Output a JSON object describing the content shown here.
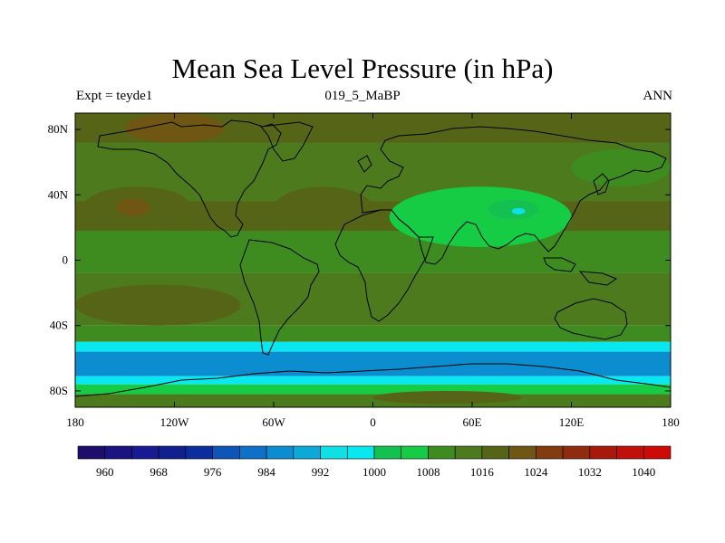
{
  "title": "Mean Sea Level Pressure (in hPa)",
  "left_label": "Expt = teyde1",
  "center_label": "019_5_MaBP",
  "right_label": "ANN",
  "chart_data": {
    "type": "heatmap",
    "title": "Mean Sea Level Pressure (in hPa)",
    "projection": "cylindrical equidistant",
    "xlim": [
      -180,
      180
    ],
    "ylim": [
      -90,
      90
    ],
    "x_ticks": [
      {
        "value": -180,
        "label": "180"
      },
      {
        "value": -120,
        "label": "120W"
      },
      {
        "value": -60,
        "label": "60W"
      },
      {
        "value": 0,
        "label": "0"
      },
      {
        "value": 60,
        "label": "60E"
      },
      {
        "value": 120,
        "label": "120E"
      },
      {
        "value": 180,
        "label": "180"
      }
    ],
    "y_ticks": [
      {
        "value": 80,
        "label": "80N"
      },
      {
        "value": 40,
        "label": "40N"
      },
      {
        "value": 0,
        "label": "0"
      },
      {
        "value": -40,
        "label": "40S"
      },
      {
        "value": -80,
        "label": "80S"
      }
    ],
    "colorbar": {
      "levels": [
        960,
        964,
        968,
        972,
        976,
        980,
        984,
        988,
        992,
        996,
        1000,
        1004,
        1008,
        1012,
        1016,
        1020,
        1024,
        1028,
        1032,
        1036,
        1040
      ],
      "labels": [
        "960",
        "968",
        "976",
        "984",
        "992",
        "1000",
        "1008",
        "1016",
        "1024",
        "1032",
        "1040"
      ],
      "colors": [
        "#1e0d6b",
        "#1a1380",
        "#171a90",
        "#10208f",
        "#0c2d9e",
        "#0d56b8",
        "#0e70c6",
        "#0b8dd0",
        "#0aa9d8",
        "#0ee0e6",
        "#09e8f0",
        "#14c050",
        "#16cc44",
        "#3e8c20",
        "#4c7a1c",
        "#566417",
        "#6f5612",
        "#823c10",
        "#8f2b0e",
        "#a8190c",
        "#c0100a",
        "#cc0a08"
      ]
    },
    "bands": [
      {
        "lat": [
          72,
          90
        ],
        "value": 1018
      },
      {
        "lat": [
          54,
          72
        ],
        "value": 1015
      },
      {
        "lat": [
          36,
          54
        ],
        "value": 1012
      },
      {
        "lat": [
          18,
          36
        ],
        "value": 1018
      },
      {
        "lat": [
          -8,
          18
        ],
        "value": 1010
      },
      {
        "lat": [
          -40,
          -8
        ],
        "value": 1014
      },
      {
        "lat": [
          -50,
          -40
        ],
        "value": 1008
      },
      {
        "lat": [
          -56,
          -50
        ],
        "value": 998
      },
      {
        "lat": [
          -71,
          -56
        ],
        "value": 986
      },
      {
        "lat": [
          -76,
          -71
        ],
        "value": 996
      },
      {
        "lat": [
          -82,
          -76
        ],
        "value": 1006
      },
      {
        "lat": [
          -90,
          -82
        ],
        "value": 1012
      }
    ],
    "features": [
      {
        "name": "north-pacific-high",
        "lon": [
          -175,
          -110
        ],
        "lat": [
          20,
          45
        ],
        "value": 1019
      },
      {
        "name": "north-pacific-high-core",
        "lon": [
          -155,
          -135
        ],
        "lat": [
          27,
          38
        ],
        "value": 1022
      },
      {
        "name": "north-atlantic-high",
        "lon": [
          -60,
          0
        ],
        "lat": [
          18,
          45
        ],
        "value": 1018
      },
      {
        "name": "asian-low",
        "lon": [
          10,
          120
        ],
        "lat": [
          8,
          45
        ],
        "value": 1006
      },
      {
        "name": "tibet-low",
        "lon": [
          70,
          100
        ],
        "lat": [
          25,
          37
        ],
        "value": 1000
      },
      {
        "name": "tibet-low-core",
        "lon": [
          84,
          92
        ],
        "lat": [
          28,
          32
        ],
        "value": 994
      },
      {
        "name": "arctic-high",
        "lon": [
          -150,
          -90
        ],
        "lat": [
          72,
          90
        ],
        "value": 1020
      },
      {
        "name": "siberia-low-lobe",
        "lon": [
          120,
          180
        ],
        "lat": [
          45,
          68
        ],
        "value": 1008
      },
      {
        "name": "south-pacific-high",
        "lon": [
          -180,
          -80
        ],
        "lat": [
          -40,
          -15
        ],
        "value": 1016
      },
      {
        "name": "antarctic-high",
        "lon": [
          0,
          90
        ],
        "lat": [
          -88,
          -80
        ],
        "value": 1018
      }
    ]
  }
}
